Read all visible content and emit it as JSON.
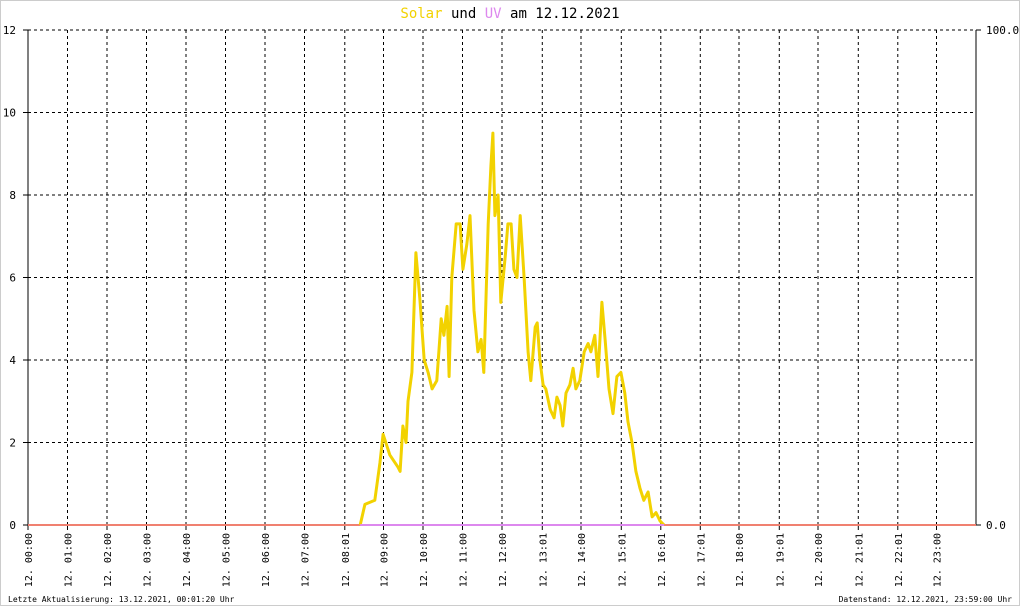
{
  "chart_data": {
    "type": "line",
    "title_parts": [
      "und",
      "am 12.12.2021"
    ],
    "footer_left": "Letzte Aktualisierung: 13.12.2021, 00:01:20 Uhr",
    "footer_right": "Datenstand: 12.12.2021, 23:59:00 Uhr",
    "xlim": [
      0,
      24
    ],
    "xticks": [
      {
        "value": 0,
        "label": "12. 00:00"
      },
      {
        "value": 1,
        "label": "12. 01:00"
      },
      {
        "value": 2,
        "label": "12. 02:00"
      },
      {
        "value": 3,
        "label": "12. 03:00"
      },
      {
        "value": 4,
        "label": "12. 04:00"
      },
      {
        "value": 5,
        "label": "12. 05:00"
      },
      {
        "value": 6,
        "label": "12. 06:00"
      },
      {
        "value": 7,
        "label": "12. 07:00"
      },
      {
        "value": 8.02,
        "label": "12. 08:01"
      },
      {
        "value": 9,
        "label": "12. 09:00"
      },
      {
        "value": 10,
        "label": "12. 10:00"
      },
      {
        "value": 11,
        "label": "12. 11:00"
      },
      {
        "value": 12,
        "label": "12. 12:00"
      },
      {
        "value": 13.02,
        "label": "12. 13:01"
      },
      {
        "value": 14,
        "label": "12. 14:00"
      },
      {
        "value": 15.02,
        "label": "12. 15:01"
      },
      {
        "value": 16.02,
        "label": "12. 16:01"
      },
      {
        "value": 17.02,
        "label": "12. 17:01"
      },
      {
        "value": 18,
        "label": "12. 18:00"
      },
      {
        "value": 19.02,
        "label": "12. 19:01"
      },
      {
        "value": 20,
        "label": "12. 20:00"
      },
      {
        "value": 21.02,
        "label": "12. 21:01"
      },
      {
        "value": 22.02,
        "label": "12. 22:01"
      },
      {
        "value": 23,
        "label": "12. 23:00"
      }
    ],
    "ylim": [
      0,
      12
    ],
    "yticks": [
      0,
      2,
      4,
      6,
      8,
      10,
      12
    ],
    "y2lim": [
      0,
      100
    ],
    "y2ticks": [
      {
        "value": 0,
        "label": "0.0"
      },
      {
        "value": 100,
        "label": "100.0"
      }
    ],
    "grid": true,
    "series": [
      {
        "name": "Solar",
        "color": "#f2d200",
        "x": [
          8.41,
          8.53,
          8.78,
          8.91,
          8.99,
          9.16,
          9.37,
          9.42,
          9.49,
          9.57,
          9.62,
          9.72,
          9.82,
          9.92,
          10.03,
          10.13,
          10.23,
          10.35,
          10.46,
          10.53,
          10.61,
          10.66,
          10.73,
          10.84,
          10.94,
          11.01,
          11.11,
          11.19,
          11.29,
          11.39,
          11.47,
          11.54,
          11.65,
          11.72,
          11.77,
          11.82,
          11.9,
          11.97,
          12.08,
          12.15,
          12.23,
          12.3,
          12.38,
          12.46,
          12.56,
          12.66,
          12.73,
          12.84,
          12.89,
          12.96,
          13.04,
          13.11,
          13.22,
          13.32,
          13.39,
          13.47,
          13.54,
          13.62,
          13.72,
          13.8,
          13.87,
          13.97,
          14.08,
          14.18,
          14.25,
          14.35,
          14.43,
          14.53,
          14.61,
          14.71,
          14.81,
          14.91,
          15.01,
          15.11,
          15.19,
          15.29,
          15.39,
          15.49,
          15.59,
          15.7,
          15.8,
          15.9,
          16.0,
          16.1
        ],
        "values": [
          0,
          0.5,
          0.6,
          1.5,
          2.2,
          1.7,
          1.4,
          1.3,
          2.4,
          2.0,
          3.0,
          3.7,
          6.6,
          5.5,
          4.0,
          3.7,
          3.3,
          3.5,
          5.0,
          4.6,
          5.3,
          3.6,
          6.0,
          7.3,
          7.3,
          6.2,
          6.8,
          7.5,
          5.2,
          4.2,
          4.5,
          3.7,
          7.3,
          8.7,
          9.5,
          7.5,
          8.0,
          5.4,
          6.5,
          7.3,
          7.3,
          6.2,
          6.0,
          7.5,
          6.0,
          4.2,
          3.5,
          4.8,
          4.9,
          4.0,
          3.4,
          3.3,
          2.8,
          2.6,
          3.1,
          2.9,
          2.4,
          3.2,
          3.4,
          3.8,
          3.3,
          3.5,
          4.2,
          4.4,
          4.2,
          4.6,
          3.6,
          5.4,
          4.5,
          3.3,
          2.7,
          3.6,
          3.7,
          3.2,
          2.5,
          2.0,
          1.3,
          0.9,
          0.6,
          0.8,
          0.2,
          0.3,
          0.1,
          0
        ]
      },
      {
        "name": "UV",
        "color": "#dd88ee",
        "axis": "y2",
        "x": [
          8.41,
          16.1
        ],
        "values": [
          0,
          0
        ]
      }
    ]
  }
}
